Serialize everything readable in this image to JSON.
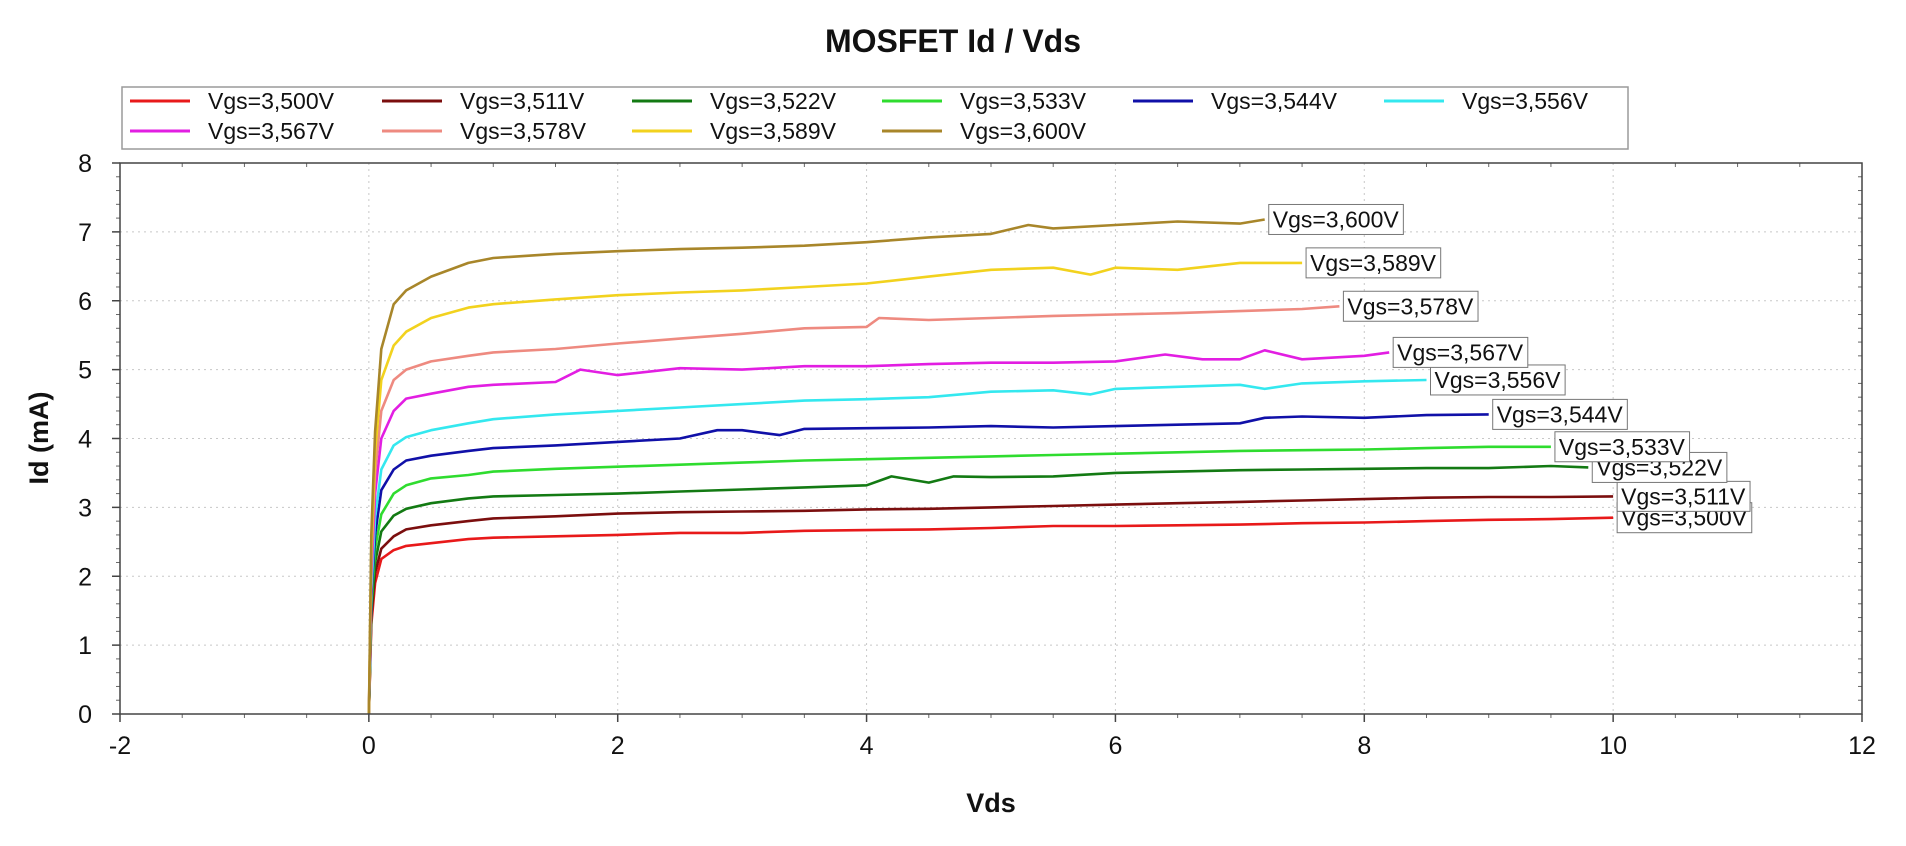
{
  "chart_data": {
    "type": "line",
    "title": "MOSFET Id / Vds",
    "xlabel": "Vds",
    "ylabel": "Id (mA)",
    "xlim": [
      -2,
      12
    ],
    "ylim": [
      0,
      8
    ],
    "xticks": [
      -2,
      0,
      2,
      4,
      6,
      8,
      10,
      12
    ],
    "yticks": [
      0,
      1,
      2,
      3,
      4,
      5,
      6,
      7,
      8
    ],
    "grid": true,
    "legend_position": "top",
    "series": [
      {
        "name": "Vgs=3,500V",
        "label": "Vgs=3,500V",
        "color": "#e8191a",
        "x": [
          0,
          0.02,
          0.05,
          0.1,
          0.2,
          0.3,
          0.5,
          0.8,
          1.0,
          1.5,
          2.0,
          2.5,
          3.0,
          3.5,
          4.0,
          4.5,
          5.0,
          5.5,
          6.0,
          6.5,
          7.0,
          7.5,
          8.0,
          8.5,
          9.0,
          9.5,
          10.0
        ],
        "y": [
          0,
          1.3,
          1.9,
          2.25,
          2.38,
          2.44,
          2.48,
          2.54,
          2.56,
          2.58,
          2.6,
          2.63,
          2.63,
          2.66,
          2.67,
          2.68,
          2.7,
          2.73,
          2.73,
          2.74,
          2.75,
          2.77,
          2.78,
          2.8,
          2.82,
          2.83,
          2.85
        ]
      },
      {
        "name": "Vgs=3,511V",
        "label": "Vgs=3,511V",
        "color": "#7b0e0e",
        "x": [
          0,
          0.02,
          0.05,
          0.1,
          0.2,
          0.3,
          0.5,
          0.8,
          1.0,
          1.5,
          2.0,
          2.5,
          3.0,
          3.5,
          4.0,
          4.5,
          5.0,
          5.5,
          6.0,
          6.5,
          7.0,
          7.5,
          8.0,
          8.5,
          9.0,
          9.5,
          10.0
        ],
        "y": [
          0,
          1.4,
          2.05,
          2.4,
          2.58,
          2.68,
          2.74,
          2.8,
          2.84,
          2.87,
          2.91,
          2.93,
          2.94,
          2.95,
          2.97,
          2.98,
          3.0,
          3.02,
          3.04,
          3.06,
          3.08,
          3.1,
          3.12,
          3.14,
          3.15,
          3.15,
          3.16
        ]
      },
      {
        "name": "Vgs=3,522V",
        "label": "Vgs=3,522V",
        "color": "#137a13",
        "x": [
          0,
          0.02,
          0.05,
          0.1,
          0.2,
          0.3,
          0.5,
          0.8,
          1.0,
          1.5,
          2.0,
          2.5,
          3.0,
          3.5,
          4.0,
          4.2,
          4.5,
          4.7,
          5.0,
          5.5,
          6.0,
          6.5,
          7.0,
          7.5,
          8.0,
          8.5,
          9.0,
          9.5,
          9.8
        ],
        "y": [
          0,
          1.5,
          2.2,
          2.65,
          2.88,
          2.98,
          3.06,
          3.13,
          3.16,
          3.18,
          3.2,
          3.23,
          3.26,
          3.29,
          3.32,
          3.45,
          3.36,
          3.45,
          3.44,
          3.45,
          3.5,
          3.52,
          3.54,
          3.55,
          3.56,
          3.57,
          3.57,
          3.6,
          3.58
        ]
      },
      {
        "name": "Vgs=3,533V",
        "label": "Vgs=3,533V",
        "color": "#2fdc2f",
        "x": [
          0,
          0.02,
          0.05,
          0.1,
          0.2,
          0.3,
          0.5,
          0.8,
          1.0,
          1.5,
          2.0,
          2.5,
          3.0,
          3.5,
          4.0,
          4.5,
          5.0,
          5.5,
          6.0,
          6.5,
          7.0,
          7.5,
          8.0,
          8.5,
          9.0,
          9.5
        ],
        "y": [
          0,
          1.6,
          2.4,
          2.9,
          3.2,
          3.32,
          3.42,
          3.47,
          3.52,
          3.56,
          3.59,
          3.62,
          3.65,
          3.68,
          3.7,
          3.72,
          3.74,
          3.76,
          3.78,
          3.8,
          3.82,
          3.83,
          3.84,
          3.86,
          3.88,
          3.88
        ]
      },
      {
        "name": "Vgs=3,544V",
        "label": "Vgs=3,544V",
        "color": "#1010a8",
        "x": [
          0,
          0.02,
          0.05,
          0.1,
          0.2,
          0.3,
          0.5,
          0.8,
          1.0,
          1.5,
          2.0,
          2.5,
          2.8,
          3.0,
          3.3,
          3.5,
          4.0,
          4.5,
          5.0,
          5.5,
          6.0,
          6.5,
          7.0,
          7.2,
          7.5,
          8.0,
          8.5,
          9.0
        ],
        "y": [
          0,
          1.7,
          2.6,
          3.25,
          3.55,
          3.68,
          3.75,
          3.82,
          3.86,
          3.9,
          3.95,
          4.0,
          4.12,
          4.12,
          4.05,
          4.14,
          4.15,
          4.16,
          4.18,
          4.16,
          4.18,
          4.2,
          4.22,
          4.3,
          4.32,
          4.3,
          4.34,
          4.35
        ]
      },
      {
        "name": "Vgs=3,556V",
        "label": "Vgs=3,556V",
        "color": "#34e8ef",
        "x": [
          0,
          0.02,
          0.05,
          0.1,
          0.2,
          0.3,
          0.5,
          0.8,
          1.0,
          1.5,
          2.0,
          2.5,
          3.0,
          3.5,
          4.0,
          4.5,
          5.0,
          5.5,
          5.8,
          6.0,
          6.5,
          7.0,
          7.2,
          7.5,
          8.0,
          8.5
        ],
        "y": [
          0,
          1.8,
          2.85,
          3.55,
          3.9,
          4.02,
          4.12,
          4.22,
          4.28,
          4.35,
          4.4,
          4.45,
          4.5,
          4.55,
          4.57,
          4.6,
          4.68,
          4.7,
          4.64,
          4.72,
          4.75,
          4.78,
          4.72,
          4.8,
          4.83,
          4.85
        ]
      },
      {
        "name": "Vgs=3,567V",
        "label": "Vgs=3,567V",
        "color": "#e21ee2",
        "x": [
          0,
          0.02,
          0.05,
          0.1,
          0.2,
          0.3,
          0.5,
          0.8,
          1.0,
          1.5,
          1.7,
          2.0,
          2.5,
          3.0,
          3.5,
          4.0,
          4.5,
          5.0,
          5.5,
          6.0,
          6.4,
          6.7,
          7.0,
          7.2,
          7.5,
          8.0,
          8.2
        ],
        "y": [
          0,
          2.0,
          3.2,
          4.0,
          4.4,
          4.58,
          4.65,
          4.75,
          4.78,
          4.82,
          5.0,
          4.92,
          5.02,
          5.0,
          5.05,
          5.05,
          5.08,
          5.1,
          5.1,
          5.12,
          5.22,
          5.15,
          5.15,
          5.28,
          5.15,
          5.2,
          5.25
        ]
      },
      {
        "name": "Vgs=3,578V",
        "label": "Vgs=3,578V",
        "color": "#ee8a80",
        "x": [
          0,
          0.02,
          0.05,
          0.1,
          0.2,
          0.3,
          0.5,
          0.8,
          1.0,
          1.5,
          2.0,
          2.5,
          3.0,
          3.5,
          4.0,
          4.1,
          4.5,
          5.0,
          5.5,
          6.0,
          6.5,
          7.0,
          7.5,
          7.8
        ],
        "y": [
          0,
          2.2,
          3.5,
          4.4,
          4.85,
          5.0,
          5.12,
          5.2,
          5.25,
          5.3,
          5.38,
          5.45,
          5.52,
          5.6,
          5.62,
          5.75,
          5.72,
          5.75,
          5.78,
          5.8,
          5.82,
          5.85,
          5.88,
          5.92
        ]
      },
      {
        "name": "Vgs=3,589V",
        "label": "Vgs=3,589V",
        "color": "#f2d21e",
        "x": [
          0,
          0.02,
          0.05,
          0.1,
          0.2,
          0.3,
          0.5,
          0.8,
          1.0,
          1.5,
          2.0,
          2.5,
          3.0,
          3.5,
          4.0,
          4.5,
          5.0,
          5.5,
          5.8,
          6.0,
          6.5,
          7.0,
          7.5
        ],
        "y": [
          0,
          2.4,
          3.8,
          4.85,
          5.35,
          5.55,
          5.75,
          5.9,
          5.95,
          6.02,
          6.08,
          6.12,
          6.15,
          6.2,
          6.25,
          6.35,
          6.45,
          6.48,
          6.38,
          6.48,
          6.45,
          6.55,
          6.55
        ]
      },
      {
        "name": "Vgs=3,600V",
        "label": "Vgs=3,600V",
        "color": "#a8862a",
        "x": [
          0,
          0.02,
          0.05,
          0.1,
          0.2,
          0.3,
          0.5,
          0.8,
          1.0,
          1.5,
          2.0,
          2.5,
          3.0,
          3.5,
          4.0,
          4.5,
          5.0,
          5.3,
          5.5,
          6.0,
          6.5,
          7.0,
          7.2
        ],
        "y": [
          0,
          2.6,
          4.1,
          5.3,
          5.95,
          6.15,
          6.35,
          6.55,
          6.62,
          6.68,
          6.72,
          6.75,
          6.77,
          6.8,
          6.85,
          6.92,
          6.97,
          7.1,
          7.05,
          7.1,
          7.15,
          7.12,
          7.18
        ]
      }
    ]
  }
}
